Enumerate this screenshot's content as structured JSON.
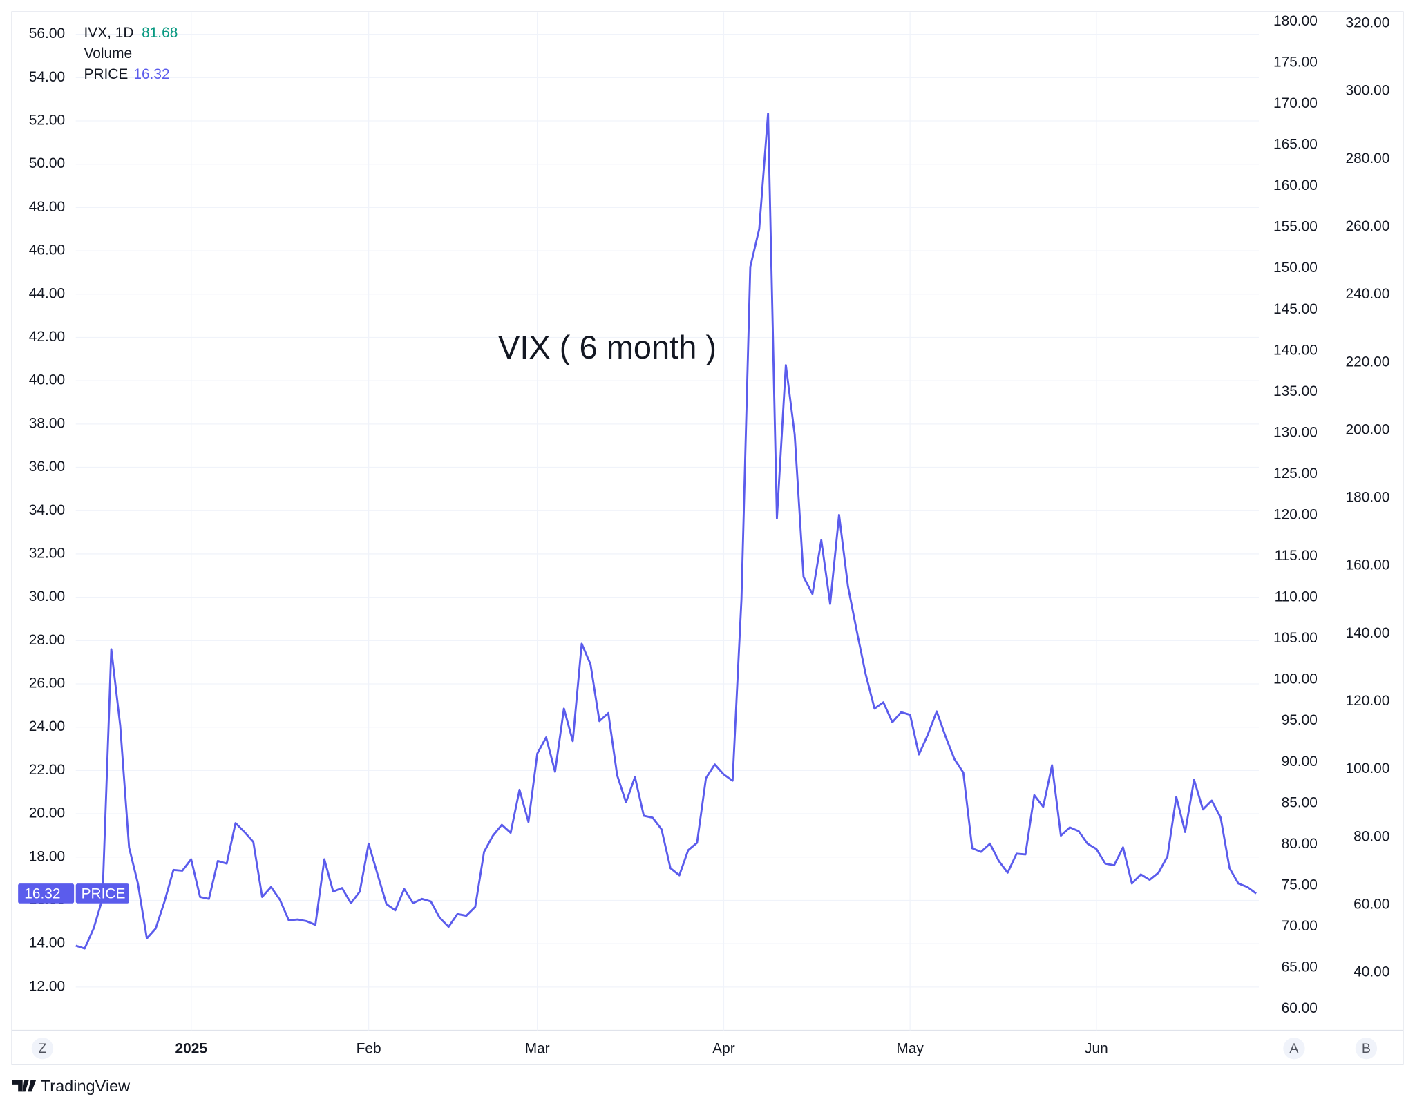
{
  "chart_data": {
    "type": "line",
    "annotation": "VIX ( 6 month )",
    "legend": {
      "symbol": "IVX, 1D",
      "symbol_value": 81.68,
      "volume": "Volume"
    },
    "buttons": {
      "left": "Z",
      "auto": "A",
      "second": "B"
    },
    "brand": "TradingView",
    "categories": [
      null,
      null,
      null,
      null,
      null,
      null,
      null,
      null,
      null,
      null,
      null,
      null,
      null,
      "2025",
      null,
      null,
      null,
      null,
      null,
      null,
      null,
      null,
      null,
      null,
      null,
      null,
      null,
      null,
      null,
      null,
      null,
      null,
      null,
      "Feb",
      null,
      null,
      null,
      null,
      null,
      null,
      null,
      null,
      null,
      null,
      null,
      null,
      null,
      null,
      null,
      null,
      null,
      null,
      "Mar",
      null,
      null,
      null,
      null,
      null,
      null,
      null,
      null,
      null,
      null,
      null,
      null,
      null,
      null,
      null,
      null,
      null,
      null,
      null,
      null,
      "Apr",
      null,
      null,
      null,
      null,
      null,
      null,
      null,
      null,
      null,
      null,
      null,
      null,
      null,
      null,
      null,
      null,
      null,
      null,
      null,
      null,
      "May",
      null,
      null,
      null,
      null,
      null,
      null,
      null,
      null,
      null,
      null,
      null,
      null,
      null,
      null,
      null,
      null,
      null,
      null,
      null,
      null,
      "Jun",
      null,
      null,
      null,
      null,
      null,
      null,
      null,
      null,
      null,
      null,
      null,
      null,
      null,
      null,
      null,
      null,
      null,
      null
    ],
    "series": [
      {
        "name": "PRICE",
        "color": "#5b5cec",
        "values": [
          13.91,
          13.78,
          14.7,
          16.07,
          27.6,
          24.07,
          18.45,
          16.78,
          14.24,
          14.7,
          15.95,
          17.41,
          17.37,
          17.9,
          16.16,
          16.07,
          17.82,
          17.7,
          19.57,
          19.16,
          18.7,
          16.16,
          16.62,
          16.03,
          15.08,
          15.12,
          15.04,
          14.87,
          17.9,
          16.41,
          16.57,
          15.87,
          16.41,
          18.62,
          17.2,
          15.83,
          15.54,
          16.53,
          15.87,
          16.07,
          15.95,
          15.2,
          14.78,
          15.37,
          15.29,
          15.7,
          18.24,
          18.99,
          19.49,
          19.12,
          21.11,
          19.62,
          22.78,
          23.53,
          21.94,
          24.86,
          23.36,
          27.86,
          26.9,
          24.28,
          24.65,
          21.78,
          20.53,
          21.7,
          19.91,
          19.82,
          19.28,
          17.49,
          17.16,
          18.32,
          18.66,
          21.65,
          22.28,
          21.82,
          21.53,
          29.9,
          45.26,
          47.01,
          52.34,
          33.64,
          40.72,
          37.52,
          30.94,
          30.15,
          32.64,
          29.69,
          33.81,
          30.52,
          28.44,
          26.44,
          24.86,
          25.15,
          24.23,
          24.69,
          24.57,
          22.74,
          23.65,
          24.73,
          23.57,
          22.53,
          21.9,
          18.41,
          18.24,
          18.62,
          17.82,
          17.28,
          18.16,
          18.12,
          20.86,
          20.32,
          22.24,
          18.99,
          19.37,
          19.2,
          18.62,
          18.37,
          17.7,
          17.62,
          18.45,
          16.78,
          17.2,
          16.95,
          17.28,
          18.03,
          20.78,
          19.16,
          21.57,
          20.2,
          20.61,
          19.82,
          17.49,
          16.78,
          16.62,
          16.32
        ]
      }
    ],
    "ylim": [
      10,
      57
    ],
    "yticks": [
      {
        "value": 12,
        "label": "12.00"
      },
      {
        "value": 14,
        "label": "14.00"
      },
      {
        "value": 16,
        "label": "16.00"
      },
      {
        "value": 18,
        "label": "18.00"
      },
      {
        "value": 20,
        "label": "20.00"
      },
      {
        "value": 22,
        "label": "22.00"
      },
      {
        "value": 24,
        "label": "24.00"
      },
      {
        "value": 26,
        "label": "26.00"
      },
      {
        "value": 28,
        "label": "28.00"
      },
      {
        "value": 30,
        "label": "30.00"
      },
      {
        "value": 32,
        "label": "32.00"
      },
      {
        "value": 34,
        "label": "34.00"
      },
      {
        "value": 36,
        "label": "36.00"
      },
      {
        "value": 38,
        "label": "38.00"
      },
      {
        "value": 40,
        "label": "40.00"
      },
      {
        "value": 42,
        "label": "42.00"
      },
      {
        "value": 44,
        "label": "44.00"
      },
      {
        "value": 46,
        "label": "46.00"
      },
      {
        "value": 48,
        "label": "48.00"
      },
      {
        "value": 50,
        "label": "50.00"
      },
      {
        "value": 52,
        "label": "52.00"
      },
      {
        "value": 54,
        "label": "54.00"
      },
      {
        "value": 56,
        "label": "56.00"
      }
    ],
    "y2lim": [
      57.4,
      181.1
    ],
    "y2ticks": [
      {
        "value": 60,
        "label": "60.00"
      },
      {
        "value": 65,
        "label": "65.00"
      },
      {
        "value": 70,
        "label": "70.00"
      },
      {
        "value": 75,
        "label": "75.00"
      },
      {
        "value": 80,
        "label": "80.00"
      },
      {
        "value": 85,
        "label": "85.00"
      },
      {
        "value": 90,
        "label": "90.00"
      },
      {
        "value": 95,
        "label": "95.00"
      },
      {
        "value": 100,
        "label": "100.00"
      },
      {
        "value": 105,
        "label": "105.00"
      },
      {
        "value": 110,
        "label": "110.00"
      },
      {
        "value": 115,
        "label": "115.00"
      },
      {
        "value": 120,
        "label": "120.00"
      },
      {
        "value": 125,
        "label": "125.00"
      },
      {
        "value": 130,
        "label": "130.00"
      },
      {
        "value": 135,
        "label": "135.00"
      },
      {
        "value": 140,
        "label": "140.00"
      },
      {
        "value": 145,
        "label": "145.00"
      },
      {
        "value": 150,
        "label": "150.00"
      },
      {
        "value": 155,
        "label": "155.00"
      },
      {
        "value": 160,
        "label": "160.00"
      },
      {
        "value": 165,
        "label": "165.00"
      },
      {
        "value": 170,
        "label": "170.00"
      },
      {
        "value": 175,
        "label": "175.00"
      },
      {
        "value": 180,
        "label": "180.00"
      }
    ],
    "y3lim": [
      23,
      323.2
    ],
    "y3ticks": [
      {
        "value": 40,
        "label": "40.00"
      },
      {
        "value": 60,
        "label": "60.00"
      },
      {
        "value": 80,
        "label": "80.00"
      },
      {
        "value": 100,
        "label": "100.00"
      },
      {
        "value": 120,
        "label": "120.00"
      },
      {
        "value": 140,
        "label": "140.00"
      },
      {
        "value": 160,
        "label": "160.00"
      },
      {
        "value": 180,
        "label": "180.00"
      },
      {
        "value": 200,
        "label": "200.00"
      },
      {
        "value": 220,
        "label": "220.00"
      },
      {
        "value": 240,
        "label": "240.00"
      },
      {
        "value": 260,
        "label": "260.00"
      },
      {
        "value": 280,
        "label": "280.00"
      },
      {
        "value": 300,
        "label": "300.00"
      },
      {
        "value": 320,
        "label": "320.00"
      }
    ],
    "grid": true
  }
}
